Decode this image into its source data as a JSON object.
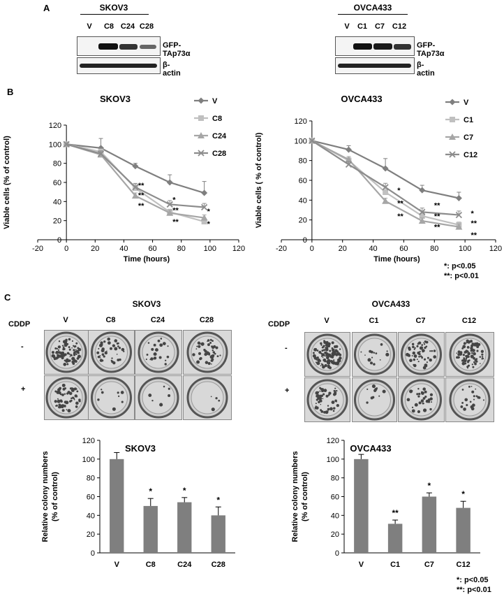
{
  "panels": {
    "a": "A",
    "b": "B",
    "c": "C"
  },
  "western_blots": [
    {
      "title": "SKOV3",
      "lanes": [
        "V",
        "C8",
        "C24",
        "C28"
      ],
      "rows": [
        "GFP-TAp73α",
        "β-actin"
      ],
      "gfp_intensity": [
        0,
        1.0,
        0.85,
        0.6
      ]
    },
    {
      "title": "OVCA433",
      "lanes": [
        "V",
        "C1",
        "C7",
        "C12"
      ],
      "rows": [
        "GFP-TAp73α",
        "β-actin"
      ],
      "gfp_intensity": [
        0,
        1.0,
        0.95,
        0.8
      ]
    }
  ],
  "significance": {
    "single": "*: p<0.05",
    "double": "**: p<0.01"
  },
  "colony": {
    "cddp_label": "CDDP",
    "conditions": [
      "-",
      "+"
    ],
    "plate_sets": [
      {
        "title": "SKOV3",
        "columns": [
          "V",
          "C8",
          "C24",
          "C28"
        ]
      },
      {
        "title": "OVCA433",
        "columns": [
          "V",
          "C1",
          "C7",
          "C12"
        ]
      }
    ]
  },
  "chart_data": [
    {
      "type": "line",
      "title": "SKOV3",
      "xlabel": "Time (hours)",
      "ylabel": "Viable cells (% of control)",
      "xlim": [
        -20,
        120
      ],
      "ylim": [
        0,
        120
      ],
      "xticks": [
        "-20",
        "0",
        "20",
        "40",
        "60",
        "80",
        "100",
        "120"
      ],
      "yticks": [
        "0",
        "20",
        "40",
        "60",
        "80",
        "100",
        "120"
      ],
      "legend": "top-right",
      "x": [
        0,
        24,
        48,
        72,
        96
      ],
      "series": [
        {
          "name": "V",
          "values": [
            100,
            96,
            77,
            60,
            49
          ],
          "err": [
            0,
            10,
            3,
            8,
            12
          ],
          "color": "#7f7f7f",
          "marker": "diamond"
        },
        {
          "name": "C8",
          "values": [
            100,
            92,
            54,
            29,
            19
          ],
          "err": [
            0,
            3,
            4,
            3,
            3
          ],
          "color": "#c0c0c0",
          "marker": "square"
        },
        {
          "name": "C24",
          "values": [
            100,
            89,
            46,
            28,
            23
          ],
          "err": [
            0,
            3,
            3,
            3,
            3
          ],
          "color": "#a6a6a6",
          "marker": "triangle"
        },
        {
          "name": "C28",
          "values": [
            100,
            90,
            55,
            37,
            34
          ],
          "err": [
            0,
            3,
            4,
            4,
            4
          ],
          "color": "#8c8c8c",
          "marker": "x"
        }
      ],
      "annotations": [
        {
          "x": 48,
          "y": 57,
          "text": "**"
        },
        {
          "x": 48,
          "y": 47,
          "text": "**"
        },
        {
          "x": 48,
          "y": 36,
          "text": "**"
        },
        {
          "x": 72,
          "y": 42,
          "text": "*"
        },
        {
          "x": 72,
          "y": 31,
          "text": "**"
        },
        {
          "x": 72,
          "y": 19,
          "text": "**"
        },
        {
          "x": 96,
          "y": 30,
          "text": "*"
        },
        {
          "x": 96,
          "y": 17,
          "text": "*"
        }
      ]
    },
    {
      "type": "line",
      "title": "OVCA433",
      "xlabel": "Time (hours)",
      "ylabel": "Viable cells ( % of control)",
      "xlim": [
        -20,
        120
      ],
      "ylim": [
        0,
        120
      ],
      "xticks": [
        "-20",
        "0",
        "20",
        "40",
        "60",
        "80",
        "100",
        "120"
      ],
      "yticks": [
        "0",
        "20",
        "40",
        "60",
        "80",
        "100",
        "120"
      ],
      "legend": "top-right",
      "x": [
        0,
        24,
        48,
        72,
        96
      ],
      "series": [
        {
          "name": "V",
          "values": [
            100,
            91,
            72,
            50,
            42
          ],
          "err": [
            0,
            4,
            10,
            5,
            6
          ],
          "color": "#7f7f7f",
          "marker": "diamond"
        },
        {
          "name": "C1",
          "values": [
            100,
            80,
            48,
            24,
            15
          ],
          "err": [
            0,
            3,
            4,
            3,
            3
          ],
          "color": "#c0c0c0",
          "marker": "square"
        },
        {
          "name": "C7",
          "values": [
            100,
            81,
            39,
            19,
            13
          ],
          "err": [
            0,
            3,
            3,
            3,
            3
          ],
          "color": "#a6a6a6",
          "marker": "triangle"
        },
        {
          "name": "C12",
          "values": [
            100,
            76,
            53,
            28,
            25
          ],
          "err": [
            0,
            3,
            4,
            4,
            4
          ],
          "color": "#8c8c8c",
          "marker": "x"
        }
      ],
      "annotations": [
        {
          "x": 54,
          "y": 50,
          "text": "*"
        },
        {
          "x": 54,
          "y": 37,
          "text": "**"
        },
        {
          "x": 54,
          "y": 24,
          "text": "**"
        },
        {
          "x": 78,
          "y": 35,
          "text": "**"
        },
        {
          "x": 78,
          "y": 24,
          "text": "**"
        },
        {
          "x": 78,
          "y": 13,
          "text": "**"
        },
        {
          "x": 102,
          "y": 27,
          "text": "*"
        },
        {
          "x": 102,
          "y": 17,
          "text": "**"
        },
        {
          "x": 102,
          "y": 5,
          "text": "**"
        }
      ]
    },
    {
      "type": "bar",
      "title": "SKOV3",
      "xlabel": "",
      "ylabel": "Relative colony numbers (% of control)",
      "ylim": [
        0,
        120
      ],
      "yticks": [
        "0",
        "20",
        "40",
        "60",
        "80",
        "100",
        "120"
      ],
      "categories": [
        "V",
        "C8",
        "C24",
        "C28"
      ],
      "values": [
        100,
        50,
        54,
        40
      ],
      "err": [
        7,
        8,
        5,
        9
      ],
      "sig": [
        "",
        "*",
        "*",
        "*"
      ],
      "color": "#7f7f7f"
    },
    {
      "type": "bar",
      "title": "OVCA433",
      "xlabel": "",
      "ylabel": "Relative colony numbers (% of control)",
      "ylim": [
        0,
        120
      ],
      "yticks": [
        "0",
        "20",
        "40",
        "60",
        "80",
        "100",
        "120"
      ],
      "categories": [
        "V",
        "C1",
        "C7",
        "C12"
      ],
      "values": [
        100,
        31,
        60,
        48
      ],
      "err": [
        5,
        4,
        4,
        7
      ],
      "sig": [
        "",
        "**",
        "*",
        "*"
      ],
      "color": "#7f7f7f"
    }
  ]
}
